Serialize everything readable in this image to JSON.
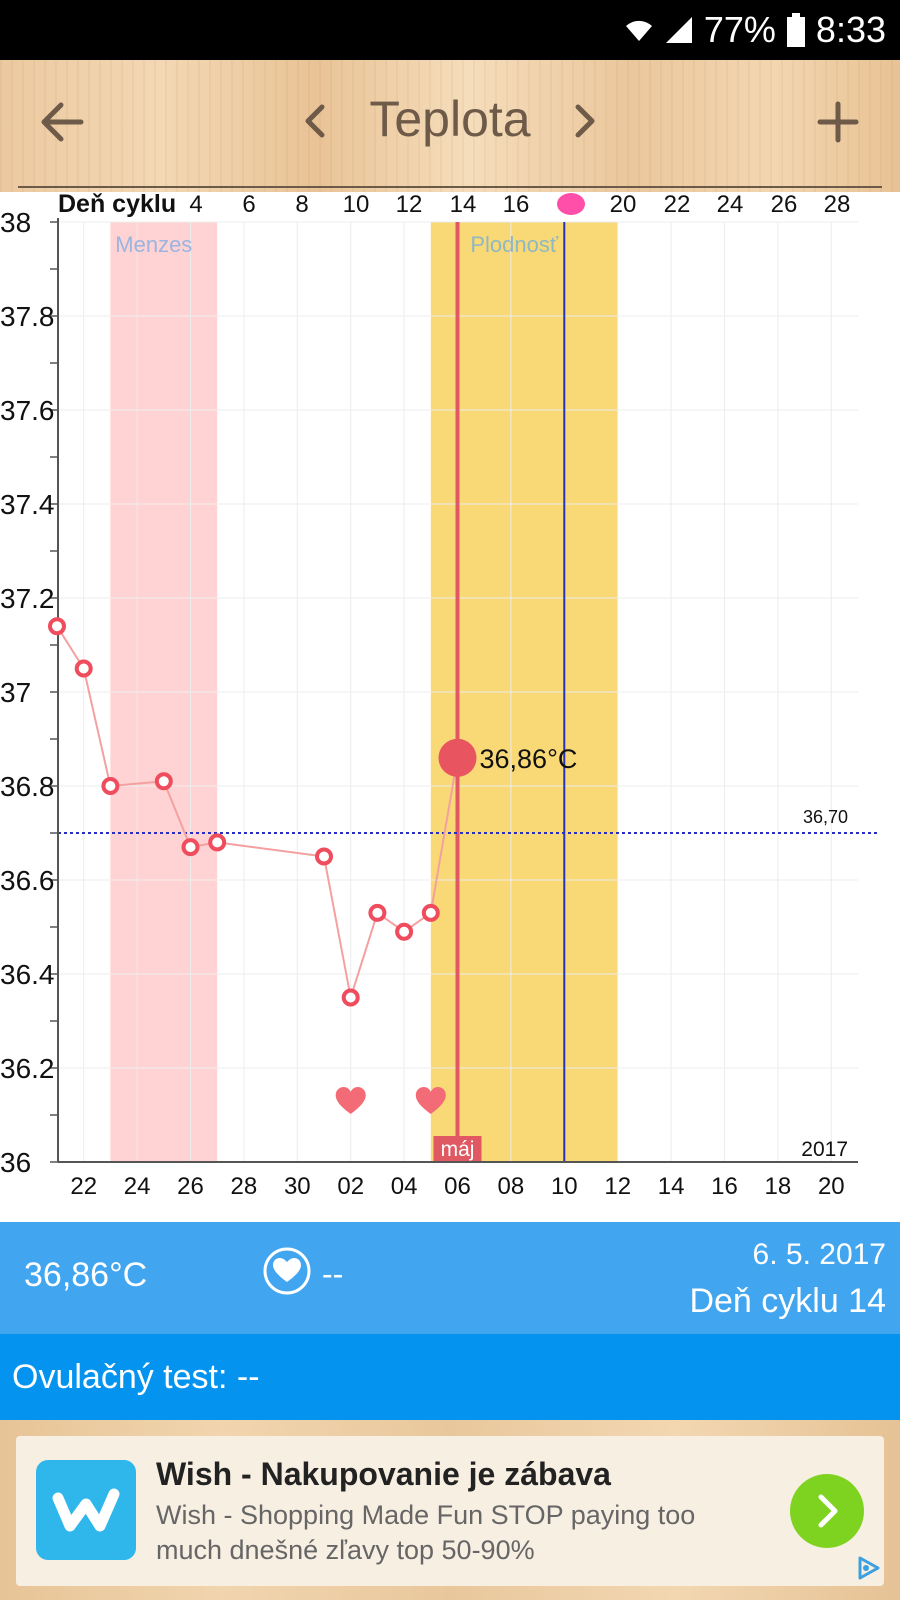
{
  "status_bar": {
    "battery": "77%",
    "time": "8:33"
  },
  "app_bar": {
    "title": "Teplota"
  },
  "chart_data": {
    "type": "line",
    "top_axis_label": "Deň cyklu",
    "top_ticks": [
      "4",
      "6",
      "8",
      "10",
      "12",
      "14",
      "16",
      "20",
      "22",
      "24",
      "26",
      "28"
    ],
    "bottom_ticks": [
      "22",
      "24",
      "26",
      "28",
      "30",
      "02",
      "04",
      "06",
      "08",
      "10",
      "12",
      "14",
      "16",
      "18",
      "20"
    ],
    "year_label": "2017",
    "month_label": "máj",
    "ylim": [
      36,
      38
    ],
    "y_ticks": [
      "38",
      "37.8",
      "37.6",
      "37.4",
      "37.2",
      "37",
      "36.8",
      "36.6",
      "36.4",
      "36.2",
      "36"
    ],
    "zones": [
      {
        "label": "Menzes",
        "from": "23.4.",
        "to": "27.4.",
        "color": "#ffd3d3",
        "label_color": "#9bb4e0"
      },
      {
        "label": "Plodnosť",
        "from": "5.5.",
        "to": "12.5.",
        "color": "#f8d976",
        "label_color": "#8fb8c2"
      }
    ],
    "series": [
      {
        "points": [
          {
            "date": "21.4.",
            "temp": 37.14
          },
          {
            "date": "22.4.",
            "temp": 37.05
          },
          {
            "date": "23.4.",
            "temp": 36.8
          },
          {
            "date": "25.4.",
            "temp": 36.81
          },
          {
            "date": "26.4.",
            "temp": 36.67
          },
          {
            "date": "27.4.",
            "temp": 36.68
          },
          {
            "date": "1.5.",
            "temp": 36.65
          },
          {
            "date": "2.5.",
            "temp": 36.35
          },
          {
            "date": "3.5.",
            "temp": 36.53
          },
          {
            "date": "4.5.",
            "temp": 36.49
          },
          {
            "date": "5.5.",
            "temp": 36.53
          },
          {
            "date": "6.5.",
            "temp": 36.86
          }
        ]
      }
    ],
    "selected": {
      "date": "6.5.",
      "label": "36,86°C"
    },
    "coverline": {
      "value": 36.7,
      "label": "36,70"
    },
    "ovulation_date": "10.5.",
    "intercourse_dates": [
      "2.5.",
      "5.5."
    ],
    "colors": {
      "line": "#f4a0a0",
      "marker": "#ef4d5e",
      "selected": "#e85561",
      "today_line": "#e05862",
      "ovulation_line": "#2433b8",
      "coverline": "#2a2fc4",
      "ovulation_marker": "#ff4fa8"
    }
  },
  "info": {
    "temp": "36,86°C",
    "intercourse": "--",
    "date": "6. 5. 2017",
    "cycle_day": "Deň cyklu 14"
  },
  "ovulation_test": {
    "label": "Ovulačný test: --"
  },
  "ad": {
    "title": "Wish - Nakupovanie je zábava",
    "description": "Wish - Shopping Made Fun STOP paying too much dnešné zľavy top 50-90%",
    "logo_icon": "wish-logo-icon",
    "cta_icon": "chevron-right-icon"
  }
}
